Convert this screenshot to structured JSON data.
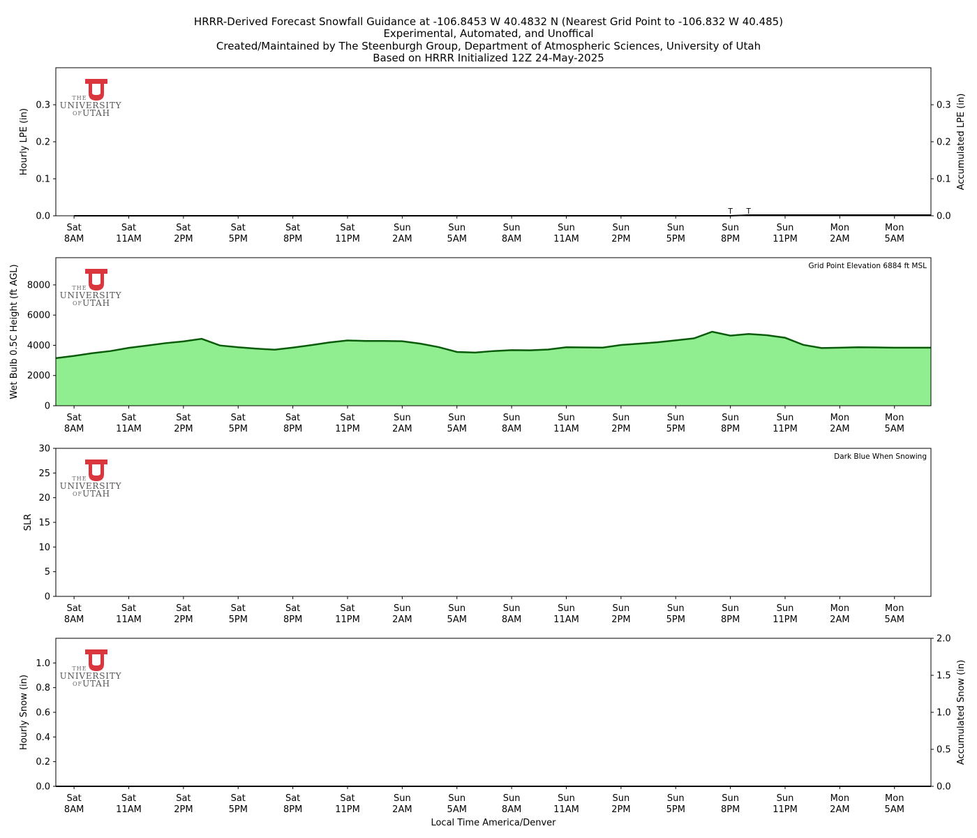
{
  "figure": {
    "title_lines": [
      "HRRR-Derived Forecast Snowfall Guidance at -106.8453 W 40.4832 N (Nearest Grid Point to -106.832 W 40.485)",
      "Experimental, Automated, and Unoffical",
      "Created/Maintained by The Steenburgh Group, Department of Atmospheric Sciences, University of Utah",
      "Based on HRRR Initialized 12Z 24-May-2025"
    ],
    "xlabel": "Local Time America/Denver",
    "logo": {
      "line1": "THE",
      "line2": "UNIVERSITY",
      "line3a": "OF",
      "line3b": "UTAH",
      "color": "#d9363e"
    }
  },
  "chart_data": [
    {
      "type": "bar",
      "ylabel": "Hourly LPE (in)",
      "ylabel_right": "Accumulated LPE (in)",
      "ylim": [
        0,
        0.4
      ],
      "yticks": [
        "0.0",
        "0.1",
        "0.2",
        "0.3"
      ],
      "ytick_values": [
        0,
        0.1,
        0.2,
        0.3
      ],
      "yticks_right": [
        "0.0",
        "0.1",
        "0.2",
        "0.3"
      ],
      "x_hours": [
        0,
        47
      ],
      "hourly_lpe": [],
      "accum_lpe_line": [
        [
          0,
          0
        ],
        [
          36,
          0
        ],
        [
          37,
          0.002
        ],
        [
          47,
          0.002
        ]
      ],
      "trace_markers": [
        {
          "x": 36,
          "label": "T"
        },
        {
          "x": 37,
          "label": "T"
        }
      ],
      "grid": false
    },
    {
      "type": "area",
      "ylabel": "Wet Bulb 0.5C Height (ft AGL)",
      "annotation": "Grid Point Elevation 6884 ft MSL",
      "ylim": [
        0,
        9800
      ],
      "yticks": [
        "0",
        "2000",
        "4000",
        "6000",
        "8000"
      ],
      "ytick_values": [
        0,
        2000,
        4000,
        6000,
        8000
      ],
      "fill_color": "#90ee90",
      "line_color": "#0a5c0a",
      "x": [
        -1,
        0,
        1,
        2,
        3,
        4,
        5,
        6,
        7,
        8,
        9,
        10,
        11,
        12,
        13,
        14,
        15,
        16,
        17,
        18,
        19,
        20,
        21,
        22,
        23,
        24,
        25,
        26,
        27,
        28,
        29,
        30,
        31,
        32,
        33,
        34,
        35,
        36,
        37,
        38,
        39,
        40,
        41,
        42,
        43,
        44,
        45,
        46,
        47
      ],
      "values": [
        3150,
        3300,
        3480,
        3620,
        3830,
        3980,
        4140,
        4260,
        4430,
        3990,
        3870,
        3780,
        3710,
        3850,
        4010,
        4190,
        4320,
        4290,
        4290,
        4270,
        4110,
        3880,
        3560,
        3520,
        3620,
        3680,
        3670,
        3720,
        3870,
        3860,
        3850,
        4020,
        4110,
        4200,
        4330,
        4460,
        4900,
        4640,
        4750,
        4670,
        4500,
        4030,
        3820,
        3840,
        3870,
        3860,
        3840,
        3840,
        3840
      ],
      "grid": false
    },
    {
      "type": "bar",
      "ylabel": "SLR",
      "annotation": "Dark Blue When Snowing",
      "ylim": [
        0,
        30
      ],
      "yticks": [
        "0",
        "5",
        "10",
        "15",
        "20",
        "25",
        "30"
      ],
      "ytick_values": [
        0,
        5,
        10,
        15,
        20,
        25,
        30
      ],
      "values": [],
      "grid": false
    },
    {
      "type": "bar",
      "ylabel": "Hourly Snow (in)",
      "ylabel_right": "Accumulated Snow (in)",
      "ylim": [
        0,
        1.2
      ],
      "yticks": [
        "0.0",
        "0.2",
        "0.4",
        "0.6",
        "0.8",
        "1.0"
      ],
      "ytick_values": [
        0,
        0.2,
        0.4,
        0.6,
        0.8,
        1.0
      ],
      "ylim_right": [
        0,
        2.0
      ],
      "yticks_right": [
        "0.0",
        "0.5",
        "1.0",
        "1.5",
        "2.0"
      ],
      "ytick_values_right": [
        0,
        0.5,
        1.0,
        1.5,
        2.0
      ],
      "hourly_snow": [],
      "accum_snow_line": [
        [
          -1,
          0
        ],
        [
          47,
          0
        ]
      ],
      "grid": false
    }
  ],
  "x_axis": {
    "tick_hours": [
      0,
      3,
      6,
      9,
      12,
      15,
      18,
      21,
      24,
      27,
      30,
      33,
      36,
      39,
      42,
      45
    ],
    "tick_day": [
      "Sat",
      "Sat",
      "Sat",
      "Sat",
      "Sat",
      "Sat",
      "Sun",
      "Sun",
      "Sun",
      "Sun",
      "Sun",
      "Sun",
      "Sun",
      "Sun",
      "Mon",
      "Mon"
    ],
    "tick_time": [
      "8AM",
      "11AM",
      "2PM",
      "5PM",
      "8PM",
      "11PM",
      "2AM",
      "5AM",
      "8AM",
      "11AM",
      "2PM",
      "5PM",
      "8PM",
      "11PM",
      "2AM",
      "5AM"
    ]
  }
}
